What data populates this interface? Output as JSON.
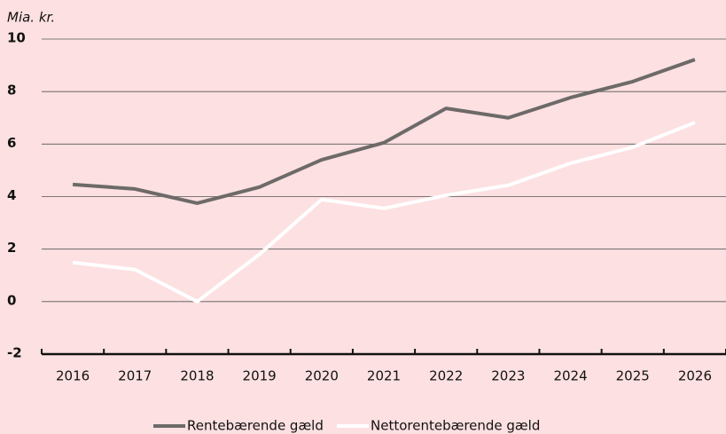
{
  "chart_data": {
    "type": "line",
    "y_unit_label": "Mia. kr.",
    "categories": [
      "2016",
      "2017",
      "2018",
      "2019",
      "2020",
      "2021",
      "2022",
      "2023",
      "2024",
      "2025",
      "2026"
    ],
    "series": [
      {
        "name": "Rentebærende gæld",
        "color": "#6d6a69",
        "values": [
          4.46,
          4.29,
          3.75,
          4.36,
          5.4,
          6.05,
          7.36,
          7.0,
          7.77,
          8.38,
          9.22
        ]
      },
      {
        "name": "Nettorentebærende gæld",
        "color": "#ffffff",
        "values": [
          1.49,
          1.22,
          0,
          1.8,
          3.89,
          3.55,
          4.05,
          4.43,
          5.27,
          5.88,
          6.82
        ]
      }
    ],
    "ylim": [
      -2,
      10
    ],
    "yticks": [
      -2,
      0,
      2,
      4,
      6,
      8,
      10
    ],
    "grid": true,
    "legend": "bottom"
  }
}
